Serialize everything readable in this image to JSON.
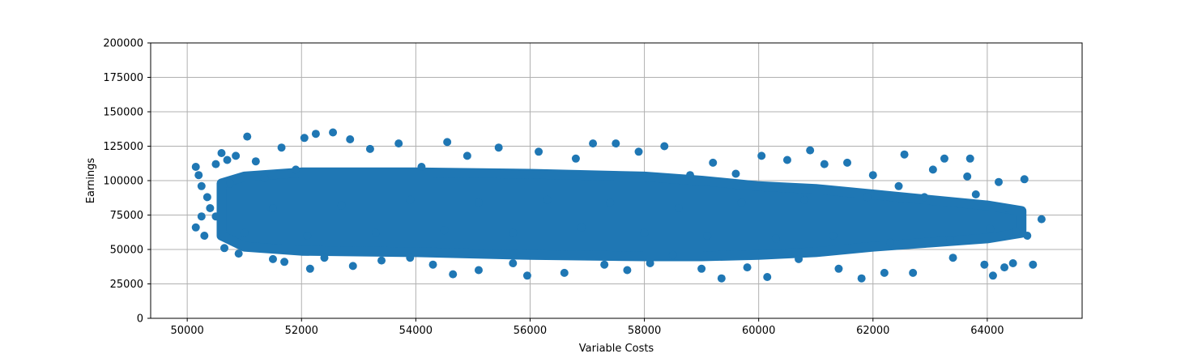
{
  "chart_data": {
    "type": "scatter",
    "title": "",
    "xlabel": "Variable Costs",
    "ylabel": "Earnings",
    "xlim": [
      49360,
      65660
    ],
    "ylim": [
      0,
      200000
    ],
    "xticks": [
      50000,
      52000,
      54000,
      56000,
      58000,
      60000,
      62000,
      64000
    ],
    "yticks": [
      0,
      25000,
      50000,
      75000,
      100000,
      125000,
      150000,
      175000,
      200000
    ],
    "grid": true,
    "marker_color": "#1f77b4",
    "series": [
      {
        "points": [
          [
            50150,
            110000
          ],
          [
            50200,
            104000
          ],
          [
            50250,
            96000
          ],
          [
            50150,
            66000
          ],
          [
            50300,
            60000
          ],
          [
            50400,
            80000
          ],
          [
            50500,
            112000
          ],
          [
            50600,
            120000
          ],
          [
            50700,
            115000
          ],
          [
            50750,
            98000
          ],
          [
            50850,
            118000
          ],
          [
            50900,
            47000
          ],
          [
            50650,
            51000
          ],
          [
            51050,
            132000
          ],
          [
            51200,
            114000
          ],
          [
            51350,
            102000
          ],
          [
            51500,
            43000
          ],
          [
            51650,
            124000
          ],
          [
            51700,
            41000
          ],
          [
            51900,
            108000
          ],
          [
            52050,
            131000
          ],
          [
            52150,
            36000
          ],
          [
            52250,
            134000
          ],
          [
            52400,
            44000
          ],
          [
            52550,
            135000
          ],
          [
            52850,
            130000
          ],
          [
            52900,
            38000
          ],
          [
            53200,
            123000
          ],
          [
            53400,
            42000
          ],
          [
            53700,
            127000
          ],
          [
            53900,
            44000
          ],
          [
            54100,
            110000
          ],
          [
            54300,
            39000
          ],
          [
            54550,
            128000
          ],
          [
            54650,
            32000
          ],
          [
            54900,
            118000
          ],
          [
            55100,
            35000
          ],
          [
            55450,
            124000
          ],
          [
            55700,
            40000
          ],
          [
            55950,
            31000
          ],
          [
            56150,
            121000
          ],
          [
            56600,
            33000
          ],
          [
            56800,
            116000
          ],
          [
            57100,
            127000
          ],
          [
            57300,
            39000
          ],
          [
            57500,
            127000
          ],
          [
            57700,
            35000
          ],
          [
            57900,
            121000
          ],
          [
            58100,
            40000
          ],
          [
            58350,
            125000
          ],
          [
            58500,
            46000
          ],
          [
            58800,
            104000
          ],
          [
            59000,
            36000
          ],
          [
            59200,
            113000
          ],
          [
            59350,
            29000
          ],
          [
            59600,
            105000
          ],
          [
            59800,
            37000
          ],
          [
            60050,
            118000
          ],
          [
            60150,
            30000
          ],
          [
            60500,
            115000
          ],
          [
            60700,
            43000
          ],
          [
            60900,
            122000
          ],
          [
            61150,
            112000
          ],
          [
            61400,
            36000
          ],
          [
            61550,
            113000
          ],
          [
            61800,
            29000
          ],
          [
            62000,
            104000
          ],
          [
            62200,
            33000
          ],
          [
            62450,
            96000
          ],
          [
            62550,
            119000
          ],
          [
            62700,
            33000
          ],
          [
            63050,
            108000
          ],
          [
            63250,
            116000
          ],
          [
            63400,
            44000
          ],
          [
            63650,
            103000
          ],
          [
            63700,
            116000
          ],
          [
            63950,
            39000
          ],
          [
            64100,
            31000
          ],
          [
            64200,
            99000
          ],
          [
            64350,
            80000
          ],
          [
            64500,
            63000
          ],
          [
            64650,
            101000
          ],
          [
            64700,
            60000
          ],
          [
            64800,
            39000
          ],
          [
            64950,
            72000
          ],
          [
            64450,
            40000
          ],
          [
            64300,
            37000
          ],
          [
            64050,
            65000
          ],
          [
            63800,
            90000
          ],
          [
            63350,
            57000
          ],
          [
            62900,
            88000
          ],
          [
            62300,
            55000
          ],
          [
            61900,
            88000
          ],
          [
            61300,
            60000
          ],
          [
            60800,
            86000
          ],
          [
            60300,
            58000
          ],
          [
            59700,
            84000
          ],
          [
            59100,
            60000
          ],
          [
            58600,
            80000
          ],
          [
            58000,
            62000
          ],
          [
            57400,
            84000
          ],
          [
            56900,
            66000
          ],
          [
            56300,
            86000
          ],
          [
            55700,
            62000
          ],
          [
            55100,
            84000
          ],
          [
            54500,
            64000
          ],
          [
            53900,
            86000
          ],
          [
            53300,
            62000
          ],
          [
            52700,
            82000
          ],
          [
            52100,
            60000
          ],
          [
            51500,
            80000
          ],
          [
            51000,
            62000
          ],
          [
            50500,
            74000
          ],
          [
            50350,
            88000
          ],
          [
            50250,
            74000
          ]
        ]
      }
    ]
  }
}
